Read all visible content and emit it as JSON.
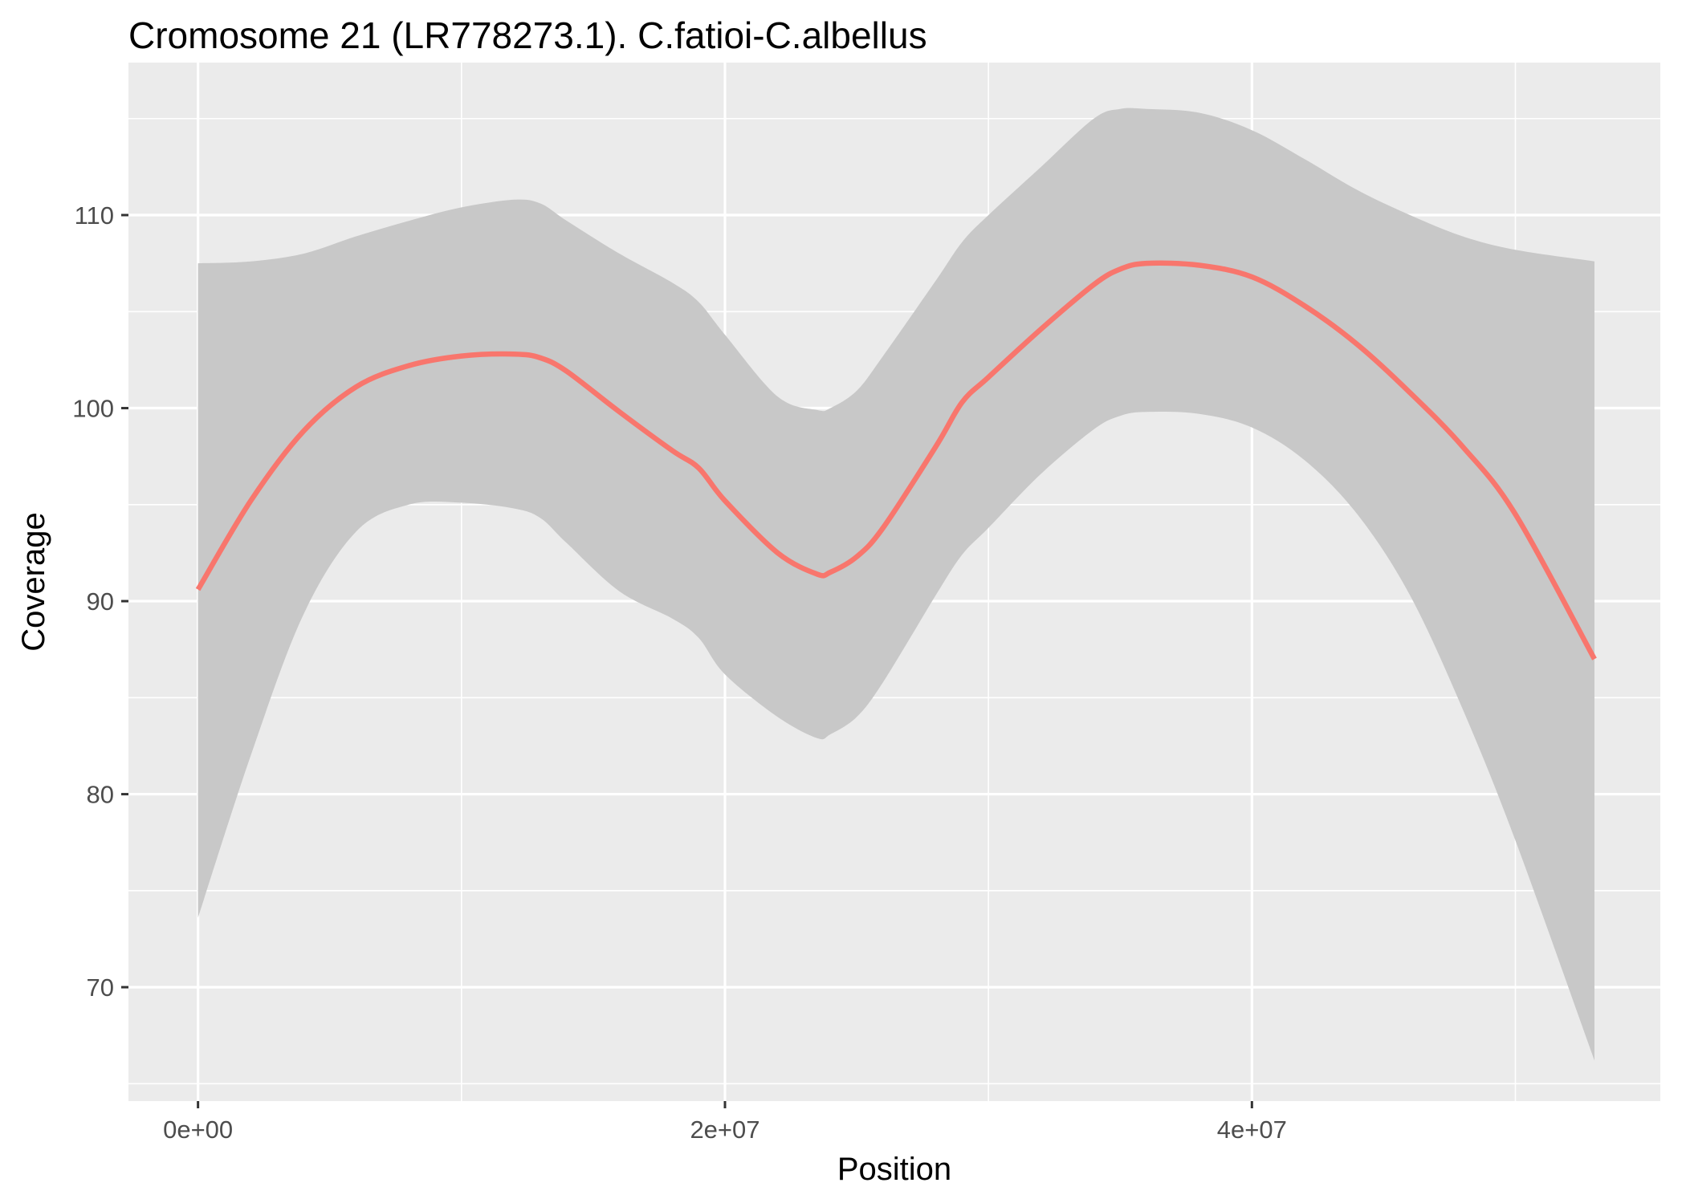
{
  "chart_data": {
    "type": "line",
    "title": "Cromosome 21 (LR778273.1). C.fatioi-C.albellus",
    "xlabel": "Position",
    "ylabel": "Coverage",
    "x_ticks": [
      {
        "value": 0,
        "label": "0e+00"
      },
      {
        "value": 20000000,
        "label": "2e+07"
      },
      {
        "value": 40000000,
        "label": "4e+07"
      }
    ],
    "y_ticks": [
      {
        "value": 70,
        "label": "70"
      },
      {
        "value": 80,
        "label": "80"
      },
      {
        "value": 90,
        "label": "90"
      },
      {
        "value": 100,
        "label": "100"
      },
      {
        "value": 110,
        "label": "110"
      }
    ],
    "xlim": [
      -2640000,
      55500000
    ],
    "ylim": [
      64.1,
      117.9
    ],
    "grid": true,
    "colors": {
      "panel_background": "#ebebeb",
      "grid": "#ffffff",
      "line": "#f8766d",
      "ribbon": "#c8c8c8"
    },
    "series": [
      {
        "x": [
          0,
          2000000,
          4000000,
          6000000,
          8000000,
          10000000,
          12000000,
          13000000,
          14000000,
          16000000,
          18000000,
          19000000,
          20000000,
          22000000,
          23500000,
          24000000,
          25000000,
          26000000,
          28000000,
          29000000,
          30000000,
          32000000,
          34000000,
          35000000,
          36000000,
          38000000,
          40000000,
          42000000,
          44000000,
          46000000,
          48000000,
          50000000,
          53000000
        ],
        "y": [
          90.6,
          95.2,
          98.8,
          101.1,
          102.2,
          102.7,
          102.8,
          102.6,
          101.9,
          99.8,
          97.8,
          96.9,
          95.2,
          92.5,
          91.4,
          91.5,
          92.3,
          93.8,
          98.0,
          100.3,
          101.6,
          104.1,
          106.4,
          107.2,
          107.5,
          107.4,
          106.8,
          105.3,
          103.3,
          100.8,
          98.0,
          94.5,
          87.0
        ],
        "lower": [
          73.6,
          82.0,
          89.3,
          93.6,
          95.0,
          95.1,
          94.8,
          94.3,
          93.0,
          90.5,
          89.1,
          88.1,
          86.2,
          84.0,
          82.9,
          83.1,
          84.0,
          85.8,
          90.3,
          92.4,
          93.8,
          96.6,
          98.9,
          99.6,
          99.8,
          99.7,
          99.0,
          97.3,
          94.5,
          90.3,
          84.4,
          77.6,
          66.2
        ],
        "upper": [
          107.5,
          107.6,
          108.0,
          108.9,
          109.7,
          110.4,
          110.8,
          110.6,
          109.7,
          108.0,
          106.5,
          105.5,
          103.8,
          100.6,
          99.9,
          100.0,
          100.9,
          102.7,
          106.6,
          108.6,
          110.0,
          112.5,
          115.0,
          115.5,
          115.5,
          115.3,
          114.4,
          112.9,
          111.3,
          110.0,
          108.9,
          108.2,
          107.6
        ]
      }
    ]
  }
}
